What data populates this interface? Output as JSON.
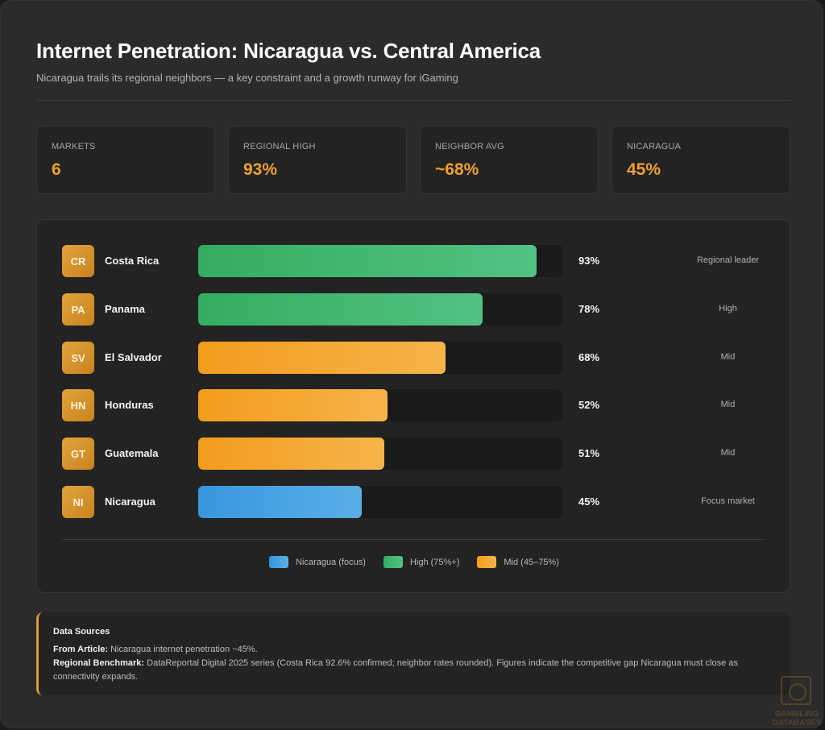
{
  "header": {
    "title": "Internet Penetration: Nicaragua vs. Central America",
    "subtitle": "Nicaragua trails its regional neighbors — a key constraint and a growth runway for iGaming"
  },
  "stats": [
    {
      "label": "MARKETS",
      "value": "6"
    },
    {
      "label": "REGIONAL HIGH",
      "value": "93%"
    },
    {
      "label": "NEIGHBOR AVG",
      "value": "~68%"
    },
    {
      "label": "NICARAGUA",
      "value": "45%"
    }
  ],
  "chart_data": {
    "type": "bar",
    "orientation": "horizontal",
    "xlim": [
      0,
      100
    ],
    "categories": [
      "Costa Rica",
      "Panama",
      "El Salvador",
      "Honduras",
      "Guatemala",
      "Nicaragua"
    ],
    "codes": [
      "CR",
      "PA",
      "SV",
      "HN",
      "GT",
      "NI"
    ],
    "values": [
      93,
      78,
      68,
      52,
      51,
      45
    ],
    "value_labels": [
      "93%",
      "78%",
      "68%",
      "52%",
      "51%",
      "45%"
    ],
    "notes": [
      "Regional leader",
      "High",
      "Mid",
      "Mid",
      "Mid",
      "Focus market"
    ],
    "groups": [
      "high",
      "high",
      "mid",
      "mid",
      "mid",
      "focus"
    ],
    "legend": [
      {
        "key": "focus",
        "label": "Nicaragua (focus)",
        "color": "#3b9be0"
      },
      {
        "key": "high",
        "label": "High (75%+)",
        "color": "#3bb56a"
      },
      {
        "key": "mid",
        "label": "Mid (45–75%)",
        "color": "#f5a020"
      }
    ],
    "legend_position": "bottom"
  },
  "sources": {
    "title": "Data Sources",
    "line1_label": "From Article:",
    "line1_text": "Nicaragua internet penetration ~45%.",
    "line2_label": "Regional Benchmark:",
    "line2_text": "DataReportal Digital 2025 series (Costa Rica 92.6% confirmed; neighbor rates rounded). Figures indicate the competitive gap Nicaragua must close as connectivity expands."
  },
  "watermark": {
    "text": "GAMBLING DATABASES"
  }
}
